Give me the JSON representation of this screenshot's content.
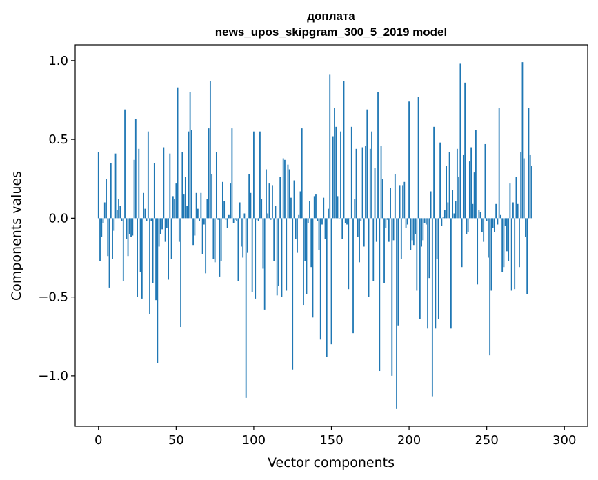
{
  "chart_data": {
    "type": "bar",
    "title": "доплата",
    "subtitle": "news_upos_skipgram_300_5_2019 model",
    "xlabel": "Vector components",
    "ylabel": "Components values",
    "xlim": [
      -15,
      315
    ],
    "ylim": [
      -1.32,
      1.1
    ],
    "xticks": [
      0,
      50,
      100,
      150,
      200,
      250,
      300
    ],
    "xtick_labels": [
      "0",
      "50",
      "100",
      "150",
      "200",
      "250",
      "300"
    ],
    "yticks": [
      -1.0,
      -0.5,
      0.0,
      0.5,
      1.0
    ],
    "ytick_labels": [
      "−1.0",
      "−0.5",
      "0.0",
      "0.5",
      "1.0"
    ],
    "grid": false,
    "color": "#1f77b4",
    "x_start": 0,
    "values": [
      0.42,
      -0.27,
      -0.12,
      -0.03,
      0.1,
      0.25,
      -0.24,
      -0.44,
      0.35,
      -0.26,
      -0.08,
      0.41,
      0.05,
      0.12,
      0.08,
      -0.02,
      -0.4,
      0.69,
      -0.13,
      -0.24,
      -0.1,
      -0.12,
      -0.11,
      0.37,
      0.63,
      -0.5,
      0.44,
      -0.34,
      -0.51,
      0.16,
      0.06,
      -0.02,
      0.55,
      -0.61,
      -0.02,
      -0.41,
      0.35,
      -0.52,
      -0.92,
      -0.18,
      -0.1,
      -0.07,
      0.45,
      -0.15,
      -0.06,
      -0.39,
      0.41,
      -0.26,
      0.14,
      0.12,
      0.22,
      0.83,
      -0.15,
      -0.69,
      0.42,
      0.15,
      0.26,
      0.08,
      0.55,
      0.8,
      0.56,
      -0.17,
      -0.11,
      0.16,
      0.06,
      -0.02,
      0.16,
      -0.23,
      -0.04,
      -0.35,
      0.12,
      0.57,
      0.87,
      0.28,
      -0.26,
      -0.28,
      0.42,
      -0.01,
      -0.37,
      -0.27,
      0.23,
      0.11,
      -0.01,
      -0.06,
      0.02,
      0.22,
      0.57,
      -0.03,
      -0.01,
      -0.02,
      -0.4,
      0.1,
      -0.18,
      -0.25,
      0.03,
      -1.14,
      -0.22,
      0.28,
      0.16,
      -0.47,
      0.55,
      -0.51,
      -0.01,
      -0.02,
      0.55,
      0.12,
      -0.32,
      -0.58,
      0.31,
      0.03,
      0.22,
      -0.01,
      0.21,
      -0.27,
      0.08,
      -0.49,
      -0.43,
      0.26,
      -0.5,
      0.38,
      0.37,
      -0.46,
      0.34,
      0.31,
      0.13,
      -0.96,
      0.24,
      -0.13,
      -0.22,
      0.02,
      0.17,
      0.57,
      -0.55,
      -0.27,
      -0.48,
      -0.03,
      0.11,
      -0.31,
      -0.63,
      0.14,
      0.15,
      -0.02,
      -0.2,
      -0.77,
      -0.04,
      0.13,
      -0.13,
      -0.88,
      0.06,
      0.91,
      -0.8,
      0.52,
      0.7,
      0.58,
      0.14,
      0.0,
      0.55,
      -0.13,
      0.87,
      -0.03,
      -0.04,
      -0.45,
      0.0,
      0.58,
      -0.73,
      0.12,
      0.44,
      -0.12,
      -0.28,
      -0.02,
      0.45,
      -0.18,
      0.46,
      0.69,
      -0.5,
      0.44,
      0.55,
      -0.4,
      0.32,
      -0.15,
      0.8,
      -0.97,
      0.46,
      0.25,
      -0.41,
      -0.06,
      -0.01,
      -0.15,
      0.19,
      -1.0,
      -0.14,
      0.28,
      -1.21,
      -0.68,
      0.21,
      -0.26,
      0.21,
      0.23,
      -0.06,
      -0.04,
      0.74,
      -0.2,
      -0.14,
      -0.17,
      -0.1,
      -0.46,
      0.77,
      -0.64,
      -0.18,
      -0.14,
      -0.03,
      -0.04,
      -0.7,
      -0.38,
      0.17,
      -1.13,
      0.58,
      -0.7,
      -0.26,
      -0.64,
      0.48,
      -0.05,
      0.01,
      0.05,
      0.33,
      0.1,
      0.42,
      -0.7,
      0.18,
      0.03,
      0.11,
      0.44,
      0.26,
      0.98,
      -0.31,
      0.4,
      0.86,
      -0.1,
      -0.09,
      0.36,
      0.45,
      0.09,
      0.29,
      0.56,
      -0.42,
      0.05,
      0.04,
      -0.09,
      -0.15,
      0.47,
      -0.02,
      -0.25,
      -0.87,
      -0.46,
      -0.06,
      -0.09,
      0.09,
      -0.04,
      0.7,
      0.02,
      -0.34,
      -0.31,
      -0.05,
      -0.21,
      -0.27,
      0.22,
      -0.46,
      0.1,
      -0.45,
      0.26,
      0.09,
      -0.31,
      0.42,
      0.99,
      0.38,
      -0.12,
      -0.48,
      0.7,
      0.4,
      0.33
    ]
  }
}
